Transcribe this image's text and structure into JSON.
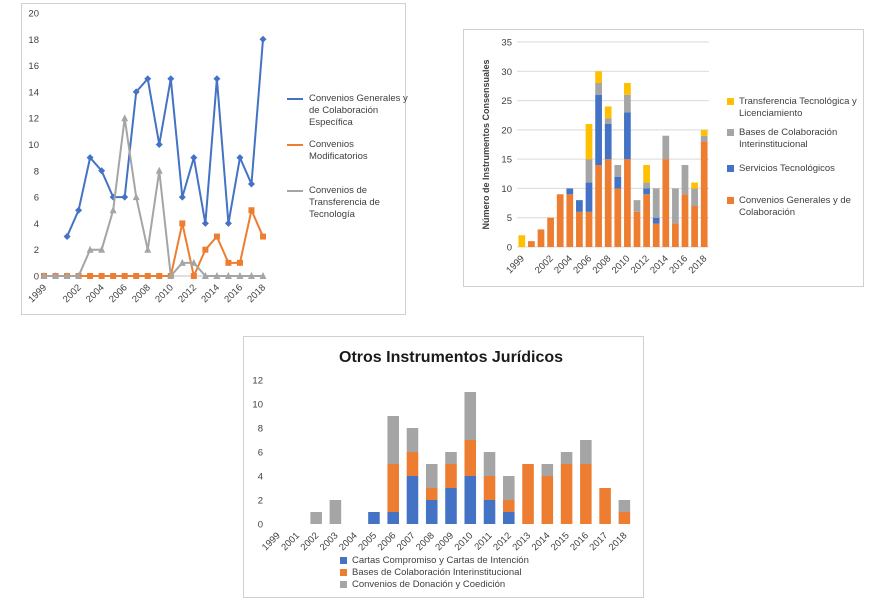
{
  "chart_data": [
    {
      "type": "line",
      "x": [
        "1999",
        "2000",
        "2001",
        "2002",
        "2003",
        "2004",
        "2005",
        "2006",
        "2007",
        "2008",
        "2009",
        "2010",
        "2011",
        "2012",
        "2013",
        "2014",
        "2015",
        "2016",
        "2017",
        "2018"
      ],
      "xticklabels": [
        "1999",
        "2002",
        "2004",
        "2006",
        "2008",
        "2010",
        "2012",
        "2014",
        "2016",
        "2018"
      ],
      "yticks": [
        0,
        2,
        4,
        6,
        8,
        10,
        12,
        14,
        16,
        18,
        20
      ],
      "ylim": [
        0,
        20
      ],
      "grid": false,
      "legend_position": "right",
      "series": [
        {
          "name": "Convenios Generales y de Colaboración Específica",
          "color": "#4472c4",
          "marker": "diamond",
          "values": [
            null,
            null,
            3,
            5,
            9,
            8,
            6,
            6,
            14,
            15,
            10,
            15,
            6,
            9,
            4,
            15,
            4,
            9,
            7,
            18
          ]
        },
        {
          "name": "Convenios Modificatorios",
          "color": "#ed7d31",
          "marker": "square",
          "values": [
            0,
            0,
            0,
            0,
            0,
            0,
            0,
            0,
            0,
            0,
            0,
            0,
            4,
            0,
            2,
            3,
            1,
            1,
            5,
            3
          ]
        },
        {
          "name": "Convenios de Transferencia de Tecnología",
          "color": "#a5a5a5",
          "marker": "triangle",
          "values": [
            0,
            0,
            0,
            0,
            2,
            2,
            5,
            12,
            6,
            2,
            8,
            0,
            1,
            1,
            0,
            0,
            0,
            0,
            0,
            0
          ]
        }
      ]
    },
    {
      "type": "bar",
      "stacked": true,
      "categories": [
        "1999",
        "2000",
        "2001",
        "2002",
        "2003",
        "2004",
        "2005",
        "2006",
        "2007",
        "2008",
        "2009",
        "2010",
        "2011",
        "2012",
        "2013",
        "2014",
        "2015",
        "2016",
        "2017",
        "2018"
      ],
      "xticklabels": [
        "1999",
        "2002",
        "2004",
        "2006",
        "2008",
        "2010",
        "2012",
        "2014",
        "2016",
        "2018"
      ],
      "ylabel": "Número de Instrumentos Consensuales",
      "yticks": [
        0,
        5,
        10,
        15,
        20,
        25,
        30,
        35
      ],
      "ylim": [
        0,
        35
      ],
      "grid": true,
      "legend_position": "right",
      "series": [
        {
          "name": "Convenios Generales y de Colaboración",
          "color": "#ed7d31",
          "values": [
            0,
            1,
            3,
            5,
            9,
            9,
            6,
            6,
            14,
            15,
            10,
            15,
            6,
            9,
            4,
            15,
            4,
            9,
            7,
            18
          ]
        },
        {
          "name": "Servicios Tecnológicos",
          "color": "#4472c4",
          "values": [
            0,
            0,
            0,
            0,
            0,
            1,
            2,
            5,
            12,
            6,
            2,
            8,
            0,
            1,
            1,
            0,
            0,
            0,
            0,
            0
          ]
        },
        {
          "name": "Bases de Colaboración Interinstitucional",
          "color": "#a5a5a5",
          "values": [
            0,
            0,
            0,
            0,
            0,
            0,
            0,
            4,
            2,
            1,
            2,
            3,
            2,
            1,
            5,
            4,
            6,
            5,
            3,
            1
          ]
        },
        {
          "name": "Transferencia Tecnológica y Licenciamiento",
          "color": "#ffc000",
          "values": [
            2,
            0,
            0,
            0,
            0,
            0,
            0,
            6,
            2,
            2,
            0,
            2,
            0,
            3,
            0,
            0,
            0,
            0,
            1,
            1
          ]
        }
      ]
    },
    {
      "type": "bar",
      "stacked": true,
      "title": "Otros Instrumentos Jurídicos",
      "categories": [
        "1999",
        "2001",
        "2002",
        "2003",
        "2004",
        "2005",
        "2006",
        "2007",
        "2008",
        "2009",
        "2010",
        "2011",
        "2012",
        "2013",
        "2014",
        "2015",
        "2016",
        "2017",
        "2018"
      ],
      "yticks": [
        0,
        2,
        4,
        6,
        8,
        10,
        12
      ],
      "ylim": [
        0,
        12
      ],
      "grid": false,
      "legend_position": "bottom",
      "series": [
        {
          "name": "Cartas Compromiso y Cartas de Intención",
          "color": "#4472c4",
          "values": [
            0,
            0,
            0,
            0,
            0,
            1,
            1,
            4,
            2,
            3,
            4,
            2,
            1,
            0,
            0,
            0,
            0,
            0,
            0
          ]
        },
        {
          "name": "Bases de Colaboración Interinstitucional",
          "color": "#ed7d31",
          "values": [
            0,
            0,
            0,
            0,
            0,
            0,
            4,
            2,
            1,
            2,
            3,
            2,
            1,
            5,
            4,
            5,
            5,
            3,
            1
          ]
        },
        {
          "name": "Convenios de Donación y Coedición",
          "color": "#a5a5a5",
          "values": [
            0,
            0,
            1,
            2,
            0,
            0,
            4,
            2,
            2,
            1,
            4,
            2,
            2,
            0,
            1,
            1,
            2,
            0,
            1
          ]
        }
      ]
    }
  ]
}
